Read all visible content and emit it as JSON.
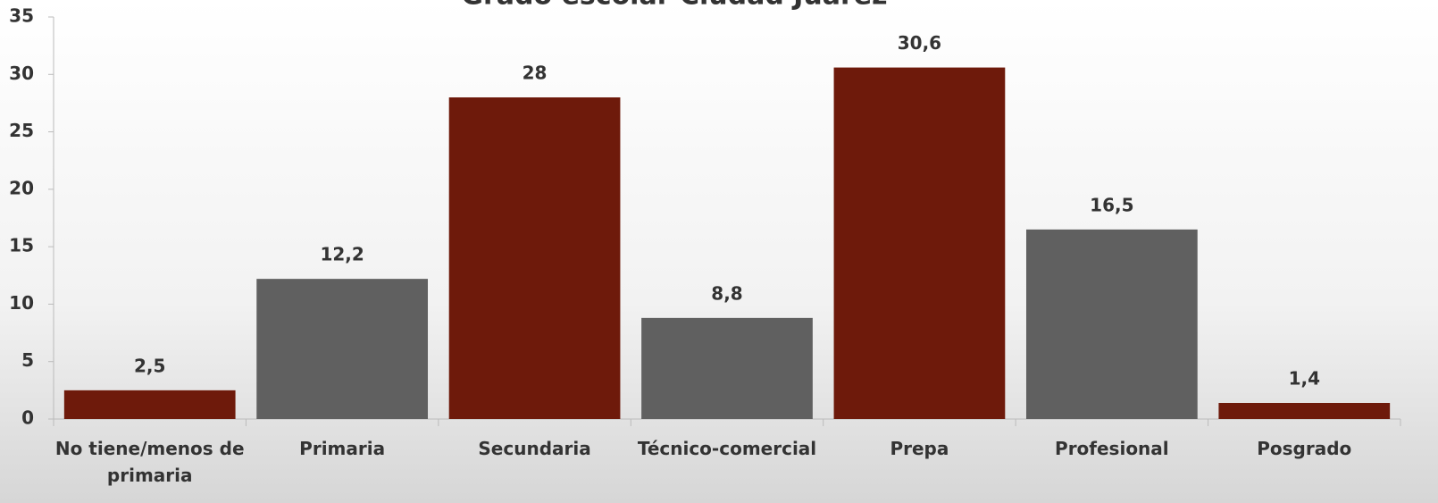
{
  "chart_data": {
    "type": "bar",
    "title": "Grado escolar Ciudad Juárez",
    "categories": [
      "No tiene/menos de primaria",
      "Primaria",
      "Secundaria",
      "Técnico-comercial",
      "Prepa",
      "Profesional",
      "Posgrado"
    ],
    "values": [
      2.5,
      12.2,
      28,
      8.8,
      30.6,
      16.5,
      1.4
    ],
    "value_labels": [
      "2,5",
      "12,2",
      "28",
      "8,8",
      "30,6",
      "16,5",
      "1,4"
    ],
    "colors": [
      "#6e1a0b",
      "#606060",
      "#6e1a0b",
      "#606060",
      "#6e1a0b",
      "#606060",
      "#6e1a0b"
    ],
    "ylim": [
      0,
      35
    ],
    "yticks": [
      0,
      5,
      10,
      15,
      20,
      25,
      30,
      35
    ],
    "grid": false
  }
}
